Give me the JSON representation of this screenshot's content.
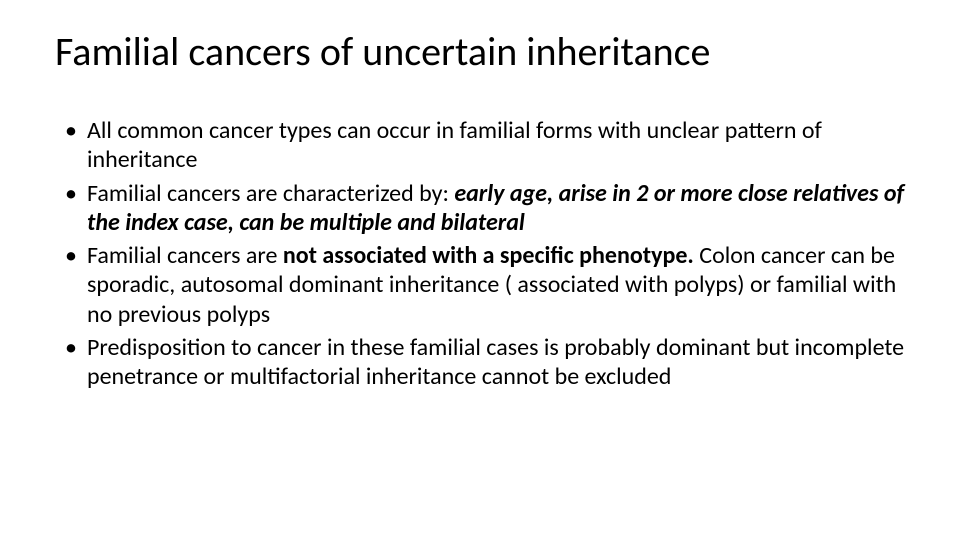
{
  "slide": {
    "title": "Familial cancers of uncertain inheritance",
    "bullets": [
      {
        "runs": [
          {
            "t": "All common cancer types can occur in familial forms with unclear pattern of inheritance",
            "style": ""
          }
        ]
      },
      {
        "runs": [
          {
            "t": "Familial cancers  are characterized by: ",
            "style": ""
          },
          {
            "t": "early age, arise in 2 or more close relatives of the index case, can be multiple and bilateral",
            "style": "bi"
          }
        ]
      },
      {
        "runs": [
          {
            "t": "Familial cancers are ",
            "style": ""
          },
          {
            "t": "not associated with a specific phenotype. ",
            "style": "b"
          },
          {
            "t": "Colon cancer can be sporadic, autosomal dominant inheritance ( associated with polyps) or familial with no previous polyps",
            "style": ""
          }
        ]
      },
      {
        "runs": [
          {
            "t": "Predisposition to cancer in these familial cases is probably dominant but incomplete penetrance or multifactorial inheritance cannot be excluded",
            "style": ""
          }
        ]
      }
    ]
  },
  "style": {
    "background_color": "#ffffff",
    "text_color": "#000000",
    "title_fontsize_pt": 40,
    "body_fontsize_pt": 24,
    "font_family": "Calibri"
  }
}
